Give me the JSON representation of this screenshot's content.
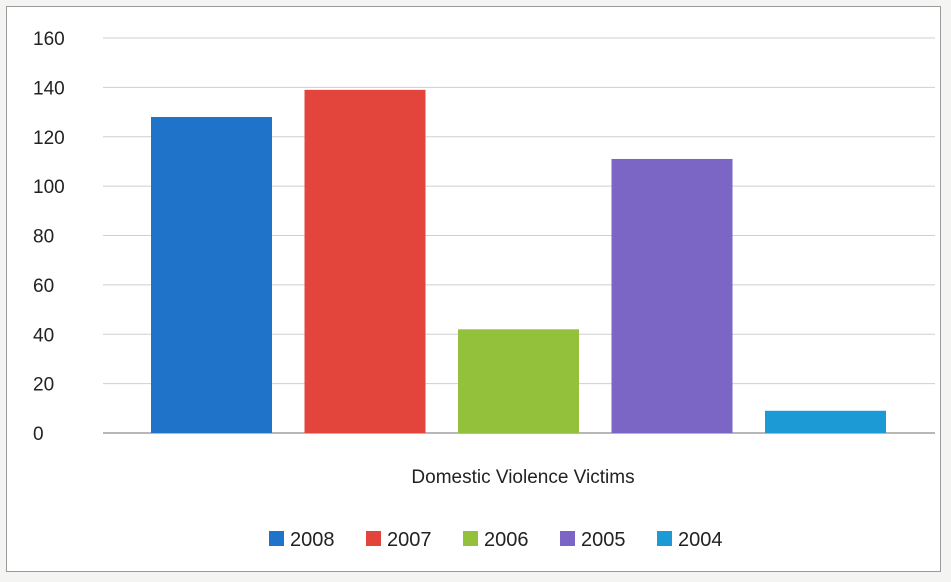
{
  "chart_data": {
    "type": "bar",
    "categories": [
      "Domestic Violence Victims"
    ],
    "series": [
      {
        "name": "2008",
        "values": [
          128
        ],
        "color": "#1f73c8"
      },
      {
        "name": "2007",
        "values": [
          139
        ],
        "color": "#e3443c"
      },
      {
        "name": "2006",
        "values": [
          42
        ],
        "color": "#93c13b"
      },
      {
        "name": "2005",
        "values": [
          111
        ],
        "color": "#7b66c6"
      },
      {
        "name": "2004",
        "values": [
          9
        ],
        "color": "#1b9ad6"
      }
    ],
    "ylim": [
      0,
      160
    ],
    "yticks": [
      "0",
      "20",
      "40",
      "60",
      "80",
      "100",
      "120",
      "140",
      "160"
    ],
    "grid": true,
    "legend_position": "bottom"
  }
}
